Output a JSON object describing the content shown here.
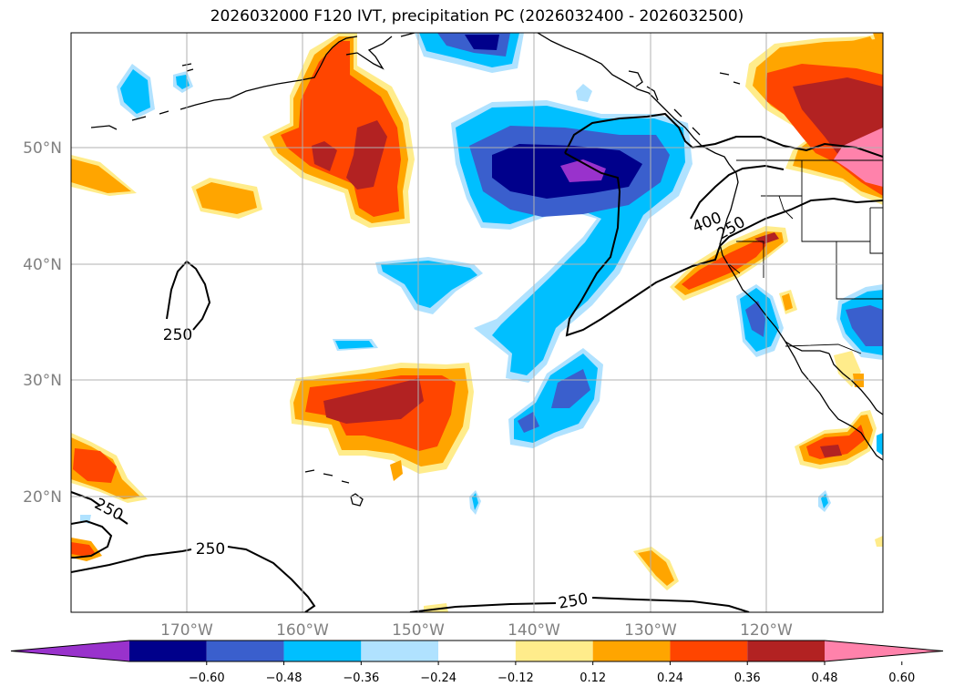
{
  "title": "2026032000 F120 IVT, precipitation PC (2026032400 - 2026032500)",
  "lat_labels": [
    "50°N",
    "40°N",
    "30°N",
    "20°N"
  ],
  "lon_labels": [
    "170°W",
    "160°W",
    "150°W",
    "140°W",
    "130°W",
    "120°W"
  ],
  "contour_labels": [
    "250",
    "250",
    "250",
    "250",
    "400",
    "250"
  ],
  "colorbar": {
    "ticks": [
      "−0.60",
      "−0.48",
      "−0.36",
      "−0.24",
      "−0.12",
      "0.12",
      "0.24",
      "0.36",
      "0.48",
      "0.60"
    ],
    "colors": [
      "#9932cc",
      "#00008b",
      "#3a5fcd",
      "#00bfff",
      "#b0e2ff",
      "#ffffff",
      "#ffec8b",
      "#ffa500",
      "#ff4500",
      "#b22222",
      "#ff82ab"
    ]
  }
}
